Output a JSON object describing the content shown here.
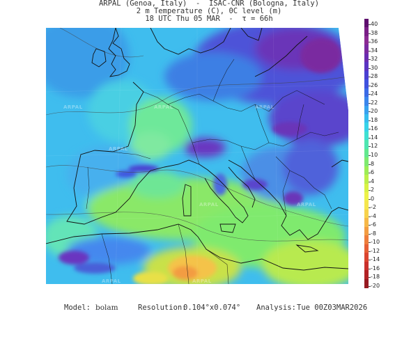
{
  "header": {
    "line1": "ARPAL (Genoa, Italy)  -  ISAC-CNR (Bologna, Italy)",
    "line2": "2 m Temperature (C), 0C level (m)",
    "line3": "18 UTC Thu 05 MAR  -  τ = 66h"
  },
  "colorbar": {
    "ticks": [
      "40",
      "38",
      "36",
      "34",
      "32",
      "30",
      "28",
      "26",
      "24",
      "22",
      "20",
      "18",
      "16",
      "14",
      "12",
      "10",
      "8",
      "6",
      "4",
      "2",
      "0",
      "-2",
      "-4",
      "-6",
      "-8",
      "-10",
      "-12",
      "-14",
      "-16",
      "-18",
      "-20"
    ],
    "colors": [
      "#5e0f6e",
      "#7a1e86",
      "#8b2a93",
      "#7a2aa0",
      "#6a2cb0",
      "#5a34c2",
      "#4a3fd2",
      "#3f52de",
      "#3b6be6",
      "#3a86ec",
      "#38a2ef",
      "#37bdee",
      "#38d3e8",
      "#3fe0d2",
      "#4fe6b0",
      "#63e88e",
      "#7fea6e",
      "#9ded55",
      "#bdf04a",
      "#d9f245",
      "#eef24a",
      "#f5e64e",
      "#f7d24c",
      "#f6b848",
      "#f39c42",
      "#ee7d3c",
      "#e65f36",
      "#db4530",
      "#c9302b",
      "#b22225",
      "#971a21"
    ]
  },
  "watermark": {
    "text": "ARPAL"
  },
  "footer": {
    "model_label": "Model:",
    "model_value": "bolam",
    "resolution_label": "Resolution:",
    "resolution_value": "0.104°x0.074°",
    "analysis_label": "Analysis:",
    "analysis_value": "Tue 00Z03MAR2026"
  }
}
